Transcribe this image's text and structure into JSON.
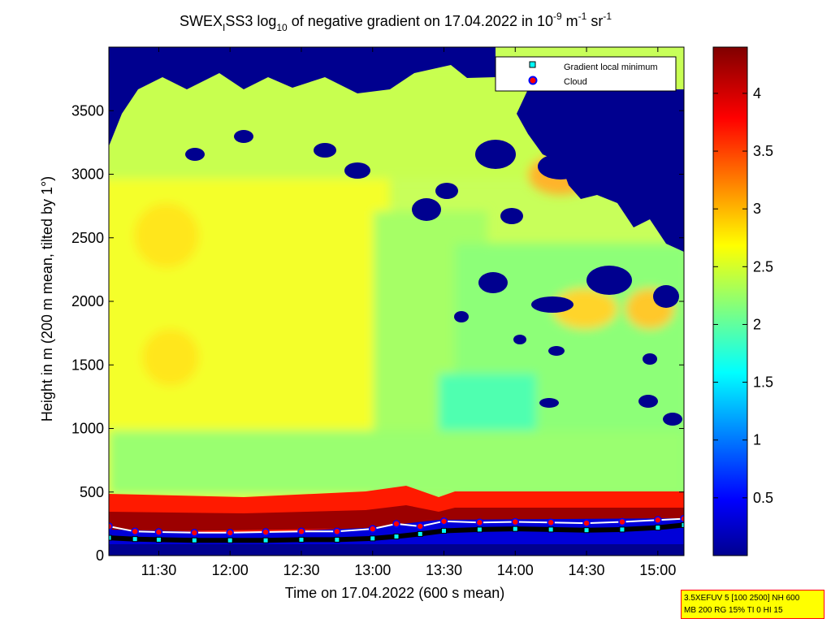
{
  "chart_data": {
    "type": "heatmap",
    "title": "SWEX_ISS3 log10 of negative gradient on 17.04.2022 in 10^-9 m^-1 sr^-1",
    "title_parts": {
      "p1": "SWEX",
      "p1_sub": "I",
      "p2": "SS3 log",
      "p2_sub": "10",
      "p3": " of negative gradient on 17.04.2022 in 10",
      "p3_sup": "-9",
      "p4": " m",
      "p4_sup": "-1",
      "p5": " sr",
      "p5_sup": "-1"
    },
    "xlabel": "Time on 17.04.2022 (600 s mean)",
    "ylabel": "Height in m (200 m mean, tilted by 1°)",
    "xlim": [
      "11:09",
      "15:11"
    ],
    "ylim": [
      0,
      4000
    ],
    "x_ticks": [
      "11:30",
      "12:00",
      "12:30",
      "13:00",
      "13:30",
      "14:00",
      "14:30",
      "15:00"
    ],
    "y_ticks": [
      0,
      500,
      1000,
      1500,
      2000,
      2500,
      3000,
      3500
    ],
    "colorbar": {
      "min": 0,
      "max": 4.4,
      "ticks": [
        "0.5",
        "1",
        "1.5",
        "2",
        "2.5",
        "3",
        "3.5",
        "4"
      ],
      "colormap": "jet"
    },
    "legend": {
      "placement": "top-right",
      "entries": [
        {
          "name": "Gradient local minimum",
          "marker": "square",
          "color": "#00ffff"
        },
        {
          "name": "Cloud",
          "marker": "circle",
          "color": "#ff0000"
        }
      ]
    },
    "series": [
      {
        "name": "Cloud",
        "x": [
          "11:09",
          "11:20",
          "11:30",
          "11:45",
          "12:00",
          "12:15",
          "12:30",
          "12:45",
          "13:00",
          "13:10",
          "13:20",
          "13:30",
          "13:45",
          "14:00",
          "14:15",
          "14:30",
          "14:45",
          "15:00",
          "15:11"
        ],
        "y": [
          230,
          190,
          185,
          180,
          180,
          185,
          190,
          190,
          210,
          250,
          230,
          270,
          260,
          265,
          260,
          255,
          265,
          280,
          290
        ]
      },
      {
        "name": "Gradient local minimum",
        "x": [
          "11:09",
          "11:20",
          "11:30",
          "11:45",
          "12:00",
          "12:15",
          "12:30",
          "12:45",
          "13:00",
          "13:10",
          "13:20",
          "13:30",
          "13:45",
          "14:00",
          "14:15",
          "14:30",
          "14:45",
          "15:00",
          "15:11"
        ],
        "y": [
          140,
          130,
          125,
          120,
          120,
          120,
          125,
          125,
          135,
          150,
          170,
          195,
          205,
          210,
          205,
          200,
          205,
          220,
          240
        ]
      }
    ]
  },
  "info_box": {
    "line1": "3.5XEFUV 5 [100 2500] NH 600",
    "line2": "MB 200 RG 15% TI 0 HI 15"
  },
  "colors": {
    "cloud_marker": "#ff0000",
    "cloud_line": "#ffffff",
    "minimum_line": "#000000",
    "minimum_marker": "#00ffff"
  }
}
